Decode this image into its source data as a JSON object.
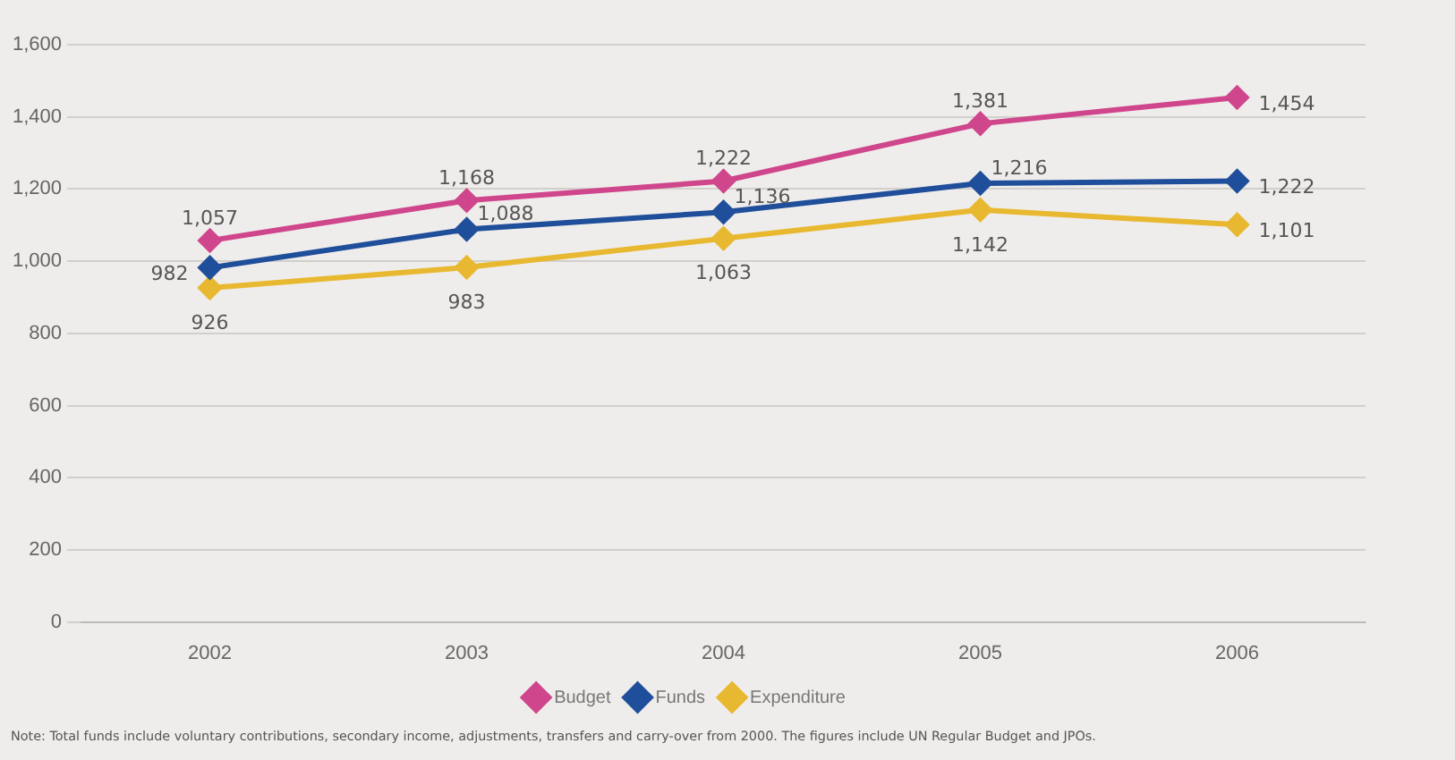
{
  "chart_data": {
    "type": "line",
    "categories": [
      "2002",
      "2003",
      "2004",
      "2005",
      "2006"
    ],
    "series": [
      {
        "name": "Budget",
        "color": "#d0468c",
        "values": [
          1057,
          1168,
          1222,
          1381,
          1454
        ],
        "value_labels": [
          "1,057",
          "1,168",
          "1,222",
          "1,381",
          "1,454"
        ]
      },
      {
        "name": "Funds",
        "color": "#1f4e9a",
        "values": [
          982,
          1088,
          1136,
          1216,
          1222
        ],
        "value_labels": [
          "982",
          "1,088",
          "1,136",
          "1,216",
          "1,222"
        ]
      },
      {
        "name": "Expenditure",
        "color": "#e8b830",
        "values": [
          926,
          983,
          1063,
          1142,
          1101
        ],
        "value_labels": [
          "926",
          "983",
          "1,063",
          "1,142",
          "1,101"
        ]
      }
    ],
    "ylim": [
      0,
      1600
    ],
    "yticks": [
      {
        "value": 0,
        "label": "0"
      },
      {
        "value": 200,
        "label": "200"
      },
      {
        "value": 400,
        "label": "400"
      },
      {
        "value": 600,
        "label": "600"
      },
      {
        "value": 800,
        "label": "800"
      },
      {
        "value": 1000,
        "label": "1,000"
      },
      {
        "value": 1200,
        "label": "1,200"
      },
      {
        "value": 1400,
        "label": "1,400"
      },
      {
        "value": 1600,
        "label": "1,600"
      }
    ],
    "grid": "y",
    "legend": "bottom",
    "marker": "diamond",
    "line_style": "solid",
    "annotations": [
      "Note: Total funds include voluntary contributions, secondary income, adjustments, transfers and carry-over from 2000. The figures include UN Regular Budget and JPOs."
    ]
  }
}
